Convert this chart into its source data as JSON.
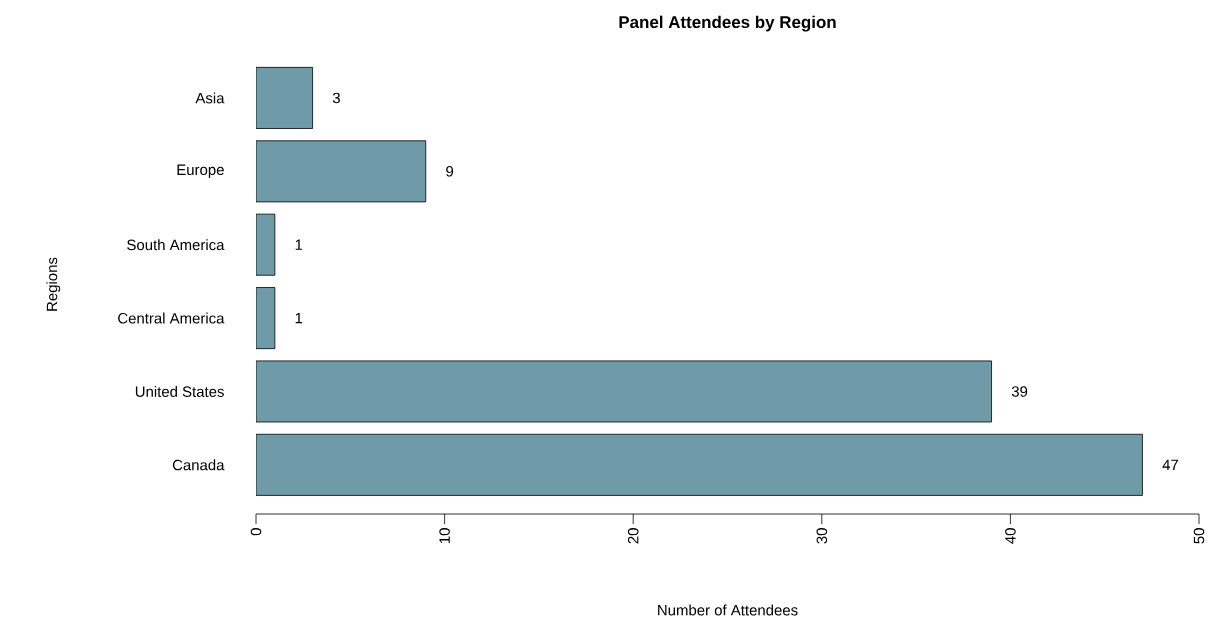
{
  "chart_data": {
    "type": "bar",
    "orientation": "horizontal",
    "title": "Panel Attendees by Region",
    "xlabel": "Number of Attendees",
    "ylabel": "Regions",
    "categories": [
      "Asia",
      "Europe",
      "South America",
      "Central America",
      "United States",
      "Canada"
    ],
    "values": [
      3,
      9,
      1,
      1,
      39,
      47
    ],
    "color": "#6f9ba8",
    "data_labels": true,
    "xlim": [
      0,
      50
    ],
    "xticks": [
      0,
      10,
      20,
      30,
      40,
      50
    ]
  }
}
